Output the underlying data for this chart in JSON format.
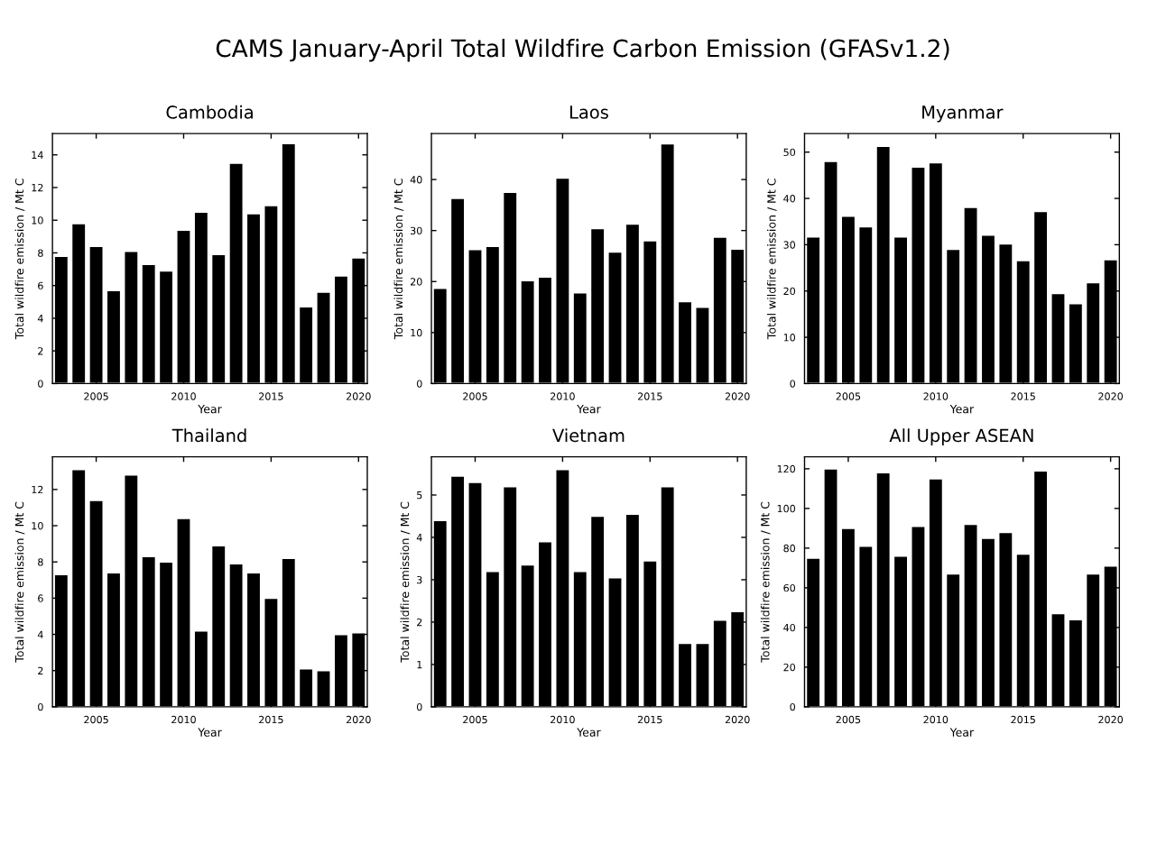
{
  "chart_data": [
    {
      "type": "other",
      "title": "CAMS January-April Total Wildfire Carbon Emission (GFASv1.2)"
    },
    {
      "type": "bar",
      "title": "Cambodia",
      "xlabel": "Year",
      "ylabel": "Total wildfire emission / Mt C",
      "color": "#000000",
      "grid": false,
      "x": [
        2003,
        2004,
        2005,
        2006,
        2007,
        2008,
        2009,
        2010,
        2011,
        2012,
        2013,
        2014,
        2015,
        2016,
        2017,
        2018,
        2019,
        2020
      ],
      "xlim": [
        2002.5,
        2020.5
      ],
      "xticks": [
        2005,
        2010,
        2015,
        2020
      ],
      "ylim": [
        0,
        15.3
      ],
      "yticks": [
        0,
        2,
        4,
        6,
        8,
        10,
        12,
        14
      ],
      "values": [
        7.8,
        9.8,
        8.4,
        5.7,
        8.1,
        7.3,
        6.9,
        9.4,
        10.5,
        7.9,
        13.5,
        10.4,
        10.9,
        14.7,
        4.7,
        5.6,
        6.6,
        7.7
      ]
    },
    {
      "type": "bar",
      "title": "Laos",
      "xlabel": "Year",
      "ylabel": "Total wildfire emission / Mt C",
      "color": "#000000",
      "grid": false,
      "x": [
        2003,
        2004,
        2005,
        2006,
        2007,
        2008,
        2009,
        2010,
        2011,
        2012,
        2013,
        2014,
        2015,
        2016,
        2017,
        2018,
        2019,
        2020
      ],
      "xlim": [
        2002.5,
        2020.5
      ],
      "xticks": [
        2005,
        2010,
        2015,
        2020
      ],
      "ylim": [
        0,
        49
      ],
      "yticks": [
        0,
        10,
        20,
        30,
        40
      ],
      "values": [
        18.7,
        36.3,
        26.3,
        26.9,
        37.5,
        20.2,
        20.9,
        40.3,
        17.8,
        30.4,
        25.8,
        31.3,
        28.0,
        47.0,
        16.1,
        15.0,
        28.7,
        26.4
      ]
    },
    {
      "type": "bar",
      "title": "Myanmar",
      "xlabel": "Year",
      "ylabel": "Total wildfire emission / Mt C",
      "color": "#000000",
      "grid": false,
      "x": [
        2003,
        2004,
        2005,
        2006,
        2007,
        2008,
        2009,
        2010,
        2011,
        2012,
        2013,
        2014,
        2015,
        2016,
        2017,
        2018,
        2019,
        2020
      ],
      "xlim": [
        2002.5,
        2020.5
      ],
      "xticks": [
        2005,
        2010,
        2015,
        2020
      ],
      "ylim": [
        0,
        54
      ],
      "yticks": [
        0,
        10,
        20,
        30,
        40,
        50
      ],
      "values": [
        31.7,
        48.0,
        36.2,
        33.9,
        51.3,
        31.7,
        46.8,
        47.7,
        29.0,
        38.1,
        32.1,
        30.2,
        26.6,
        37.2,
        19.5,
        17.3,
        21.8,
        26.8
      ]
    },
    {
      "type": "bar",
      "title": "Thailand",
      "xlabel": "Year",
      "ylabel": "Total wildfire emission / Mt C",
      "color": "#000000",
      "grid": false,
      "x": [
        2003,
        2004,
        2005,
        2006,
        2007,
        2008,
        2009,
        2010,
        2011,
        2012,
        2013,
        2014,
        2015,
        2016,
        2017,
        2018,
        2019,
        2020
      ],
      "xlim": [
        2002.5,
        2020.5
      ],
      "xticks": [
        2005,
        2010,
        2015,
        2020
      ],
      "ylim": [
        0,
        13.8
      ],
      "yticks": [
        0,
        2,
        4,
        6,
        8,
        10,
        12
      ],
      "values": [
        7.3,
        13.1,
        11.4,
        7.4,
        12.8,
        8.3,
        8.0,
        10.4,
        4.2,
        8.9,
        7.9,
        7.4,
        6.0,
        8.2,
        2.1,
        2.0,
        4.0,
        4.1
      ]
    },
    {
      "type": "bar",
      "title": "Vietnam",
      "xlabel": "Year",
      "ylabel": "Total wildfire emission / Mt C",
      "color": "#000000",
      "grid": false,
      "x": [
        2003,
        2004,
        2005,
        2006,
        2007,
        2008,
        2009,
        2010,
        2011,
        2012,
        2013,
        2014,
        2015,
        2016,
        2017,
        2018,
        2019,
        2020
      ],
      "xlim": [
        2002.5,
        2020.5
      ],
      "xticks": [
        2005,
        2010,
        2015,
        2020
      ],
      "ylim": [
        0,
        5.9
      ],
      "yticks": [
        0,
        1,
        2,
        3,
        4,
        5
      ],
      "values": [
        4.4,
        5.45,
        5.3,
        3.2,
        5.2,
        3.35,
        3.9,
        5.6,
        3.2,
        4.5,
        3.05,
        4.55,
        3.45,
        5.2,
        1.5,
        1.5,
        2.05,
        2.25
      ]
    },
    {
      "type": "bar",
      "title": "All Upper ASEAN",
      "xlabel": "Year",
      "ylabel": "Total wildfire emission / Mt C",
      "color": "#000000",
      "grid": false,
      "x": [
        2003,
        2004,
        2005,
        2006,
        2007,
        2008,
        2009,
        2010,
        2011,
        2012,
        2013,
        2014,
        2015,
        2016,
        2017,
        2018,
        2019,
        2020
      ],
      "xlim": [
        2002.5,
        2020.5
      ],
      "xticks": [
        2005,
        2010,
        2015,
        2020
      ],
      "ylim": [
        0,
        126
      ],
      "yticks": [
        0,
        20,
        40,
        60,
        80,
        100,
        120
      ],
      "values": [
        75,
        120,
        90,
        81,
        118,
        76,
        91,
        115,
        67,
        92,
        85,
        88,
        77,
        119,
        47,
        44,
        67,
        71
      ]
    }
  ]
}
